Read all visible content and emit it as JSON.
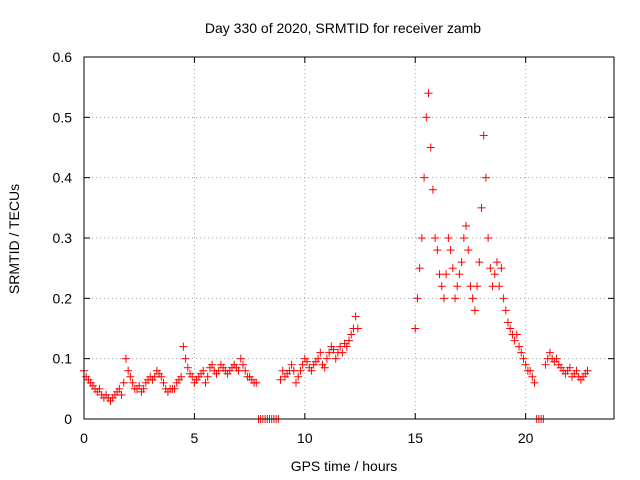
{
  "chart_data": {
    "type": "scatter",
    "title": "Day 330 of 2020, SRMTID for receiver zamb",
    "xlabel": "GPS time / hours",
    "ylabel": "SRMTID / TECUs",
    "xlim": [
      0,
      24
    ],
    "ylim": [
      0,
      0.6
    ],
    "xticks": [
      "0",
      "5",
      "10",
      "15",
      "20"
    ],
    "yticks": [
      "0",
      "0.1",
      "0.2",
      "0.3",
      "0.4",
      "0.5",
      "0.6"
    ],
    "grid": true,
    "marker": "+",
    "color": "#ff0000",
    "series": [
      {
        "name": "SRMTID",
        "x": [
          0.0,
          0.1,
          0.2,
          0.3,
          0.4,
          0.5,
          0.6,
          0.7,
          0.8,
          0.9,
          1.0,
          1.1,
          1.2,
          1.3,
          1.4,
          1.5,
          1.6,
          1.7,
          1.8,
          1.9,
          2.0,
          2.1,
          2.2,
          2.3,
          2.4,
          2.5,
          2.6,
          2.7,
          2.8,
          2.9,
          3.0,
          3.1,
          3.2,
          3.3,
          3.4,
          3.5,
          3.6,
          3.7,
          3.8,
          3.9,
          4.0,
          4.1,
          4.2,
          4.3,
          4.4,
          4.5,
          4.6,
          4.7,
          4.8,
          4.9,
          5.0,
          5.1,
          5.2,
          5.3,
          5.4,
          5.5,
          5.6,
          5.7,
          5.8,
          5.9,
          6.0,
          6.1,
          6.2,
          6.3,
          6.4,
          6.5,
          6.6,
          6.7,
          6.8,
          6.9,
          7.0,
          7.1,
          7.2,
          7.3,
          7.4,
          7.5,
          7.6,
          7.7,
          7.8,
          7.9,
          8.0,
          8.1,
          8.2,
          8.3,
          8.4,
          8.5,
          8.6,
          8.7,
          8.8,
          8.9,
          9.0,
          9.1,
          9.2,
          9.3,
          9.4,
          9.5,
          9.6,
          9.7,
          9.8,
          9.9,
          10.0,
          10.1,
          10.2,
          10.3,
          10.4,
          10.5,
          10.6,
          10.7,
          10.8,
          10.9,
          11.0,
          11.1,
          11.2,
          11.3,
          11.4,
          11.5,
          11.6,
          11.7,
          11.8,
          11.9,
          12.0,
          12.1,
          12.2,
          12.3,
          12.4,
          15.0,
          15.1,
          15.2,
          15.3,
          15.4,
          15.5,
          15.6,
          15.7,
          15.8,
          15.9,
          16.0,
          16.1,
          16.2,
          16.3,
          16.4,
          16.5,
          16.6,
          16.7,
          16.8,
          16.9,
          17.0,
          17.1,
          17.2,
          17.3,
          17.4,
          17.5,
          17.6,
          17.7,
          17.8,
          17.9,
          18.0,
          18.1,
          18.2,
          18.3,
          18.4,
          18.5,
          18.6,
          18.7,
          18.8,
          18.9,
          19.0,
          19.1,
          19.2,
          19.3,
          19.4,
          19.5,
          19.6,
          19.7,
          19.8,
          19.9,
          20.0,
          20.1,
          20.2,
          20.3,
          20.4,
          20.5,
          20.6,
          20.7,
          20.8,
          20.9,
          21.0,
          21.1,
          21.2,
          21.3,
          21.4,
          21.5,
          21.6,
          21.7,
          21.8,
          21.9,
          22.0,
          22.1,
          22.2,
          22.3,
          22.4,
          22.5,
          22.6,
          22.7,
          22.8
        ],
        "y": [
          0.08,
          0.07,
          0.065,
          0.06,
          0.055,
          0.05,
          0.045,
          0.05,
          0.04,
          0.035,
          0.04,
          0.035,
          0.03,
          0.035,
          0.04,
          0.045,
          0.05,
          0.04,
          0.06,
          0.1,
          0.08,
          0.07,
          0.06,
          0.05,
          0.05,
          0.055,
          0.045,
          0.05,
          0.06,
          0.065,
          0.07,
          0.065,
          0.07,
          0.08,
          0.075,
          0.07,
          0.06,
          0.05,
          0.045,
          0.05,
          0.05,
          0.05,
          0.06,
          0.065,
          0.07,
          0.12,
          0.1,
          0.085,
          0.075,
          0.07,
          0.06,
          0.065,
          0.07,
          0.075,
          0.08,
          0.06,
          0.07,
          0.085,
          0.09,
          0.08,
          0.075,
          0.08,
          0.09,
          0.085,
          0.08,
          0.075,
          0.08,
          0.085,
          0.09,
          0.085,
          0.08,
          0.1,
          0.09,
          0.08,
          0.07,
          0.07,
          0.065,
          0.06,
          0.06,
          0.0,
          0.0,
          0.0,
          0.0,
          0.0,
          0.0,
          0.0,
          0.0,
          0.0,
          0.0,
          0.065,
          0.08,
          0.07,
          0.075,
          0.08,
          0.09,
          0.08,
          0.06,
          0.07,
          0.08,
          0.09,
          0.1,
          0.095,
          0.085,
          0.08,
          0.09,
          0.095,
          0.1,
          0.11,
          0.09,
          0.085,
          0.1,
          0.11,
          0.12,
          0.115,
          0.1,
          0.11,
          0.12,
          0.11,
          0.125,
          0.12,
          0.13,
          0.14,
          0.15,
          0.17,
          0.15,
          0.15,
          0.2,
          0.25,
          0.3,
          0.4,
          0.5,
          0.54,
          0.45,
          0.38,
          0.3,
          0.28,
          0.24,
          0.22,
          0.2,
          0.24,
          0.3,
          0.28,
          0.25,
          0.2,
          0.22,
          0.24,
          0.26,
          0.3,
          0.32,
          0.28,
          0.22,
          0.2,
          0.18,
          0.22,
          0.26,
          0.35,
          0.47,
          0.4,
          0.3,
          0.25,
          0.22,
          0.24,
          0.26,
          0.22,
          0.25,
          0.2,
          0.18,
          0.16,
          0.15,
          0.14,
          0.13,
          0.14,
          0.12,
          0.11,
          0.1,
          0.09,
          0.08,
          0.08,
          0.07,
          0.06,
          0.0,
          0.0,
          0.0,
          0.0,
          0.09,
          0.1,
          0.11,
          0.1,
          0.095,
          0.1,
          0.09,
          0.085,
          0.08,
          0.075,
          0.08,
          0.085,
          0.07,
          0.075,
          0.08,
          0.07,
          0.065,
          0.07,
          0.075,
          0.08
        ]
      }
    ]
  }
}
